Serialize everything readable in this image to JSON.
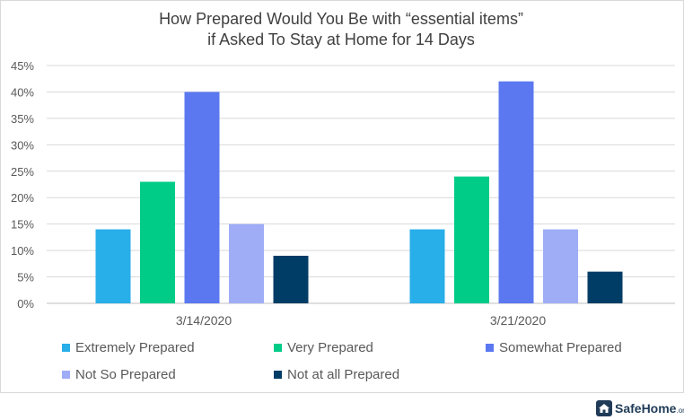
{
  "chart_data": {
    "type": "bar",
    "title": [
      "How Prepared Would You Be with “essential items”",
      "if Asked To Stay at Home for 14 Days"
    ],
    "categories": [
      "3/14/2020",
      "3/21/2020"
    ],
    "series": [
      {
        "name": "Extremely Prepared",
        "values": [
          14,
          14
        ],
        "color": "#28aee9"
      },
      {
        "name": "Very Prepared",
        "values": [
          23,
          24
        ],
        "color": "#00cc88"
      },
      {
        "name": "Somewhat Prepared",
        "values": [
          40,
          42
        ],
        "color": "#5b78f0"
      },
      {
        "name": "Not So Prepared",
        "values": [
          15,
          14
        ],
        "color": "#9fadf7"
      },
      {
        "name": "Not at all Prepared",
        "values": [
          9,
          6
        ],
        "color": "#003d66"
      }
    ],
    "ylim": [
      0,
      45
    ],
    "yticks": [
      "0%",
      "5%",
      "10%",
      "15%",
      "20%",
      "25%",
      "30%",
      "35%",
      "40%",
      "45%"
    ],
    "grid": true,
    "legend": "bottom"
  },
  "branding": {
    "name": "SafeHome",
    "suffix": ".org",
    "icon": "house-icon"
  }
}
